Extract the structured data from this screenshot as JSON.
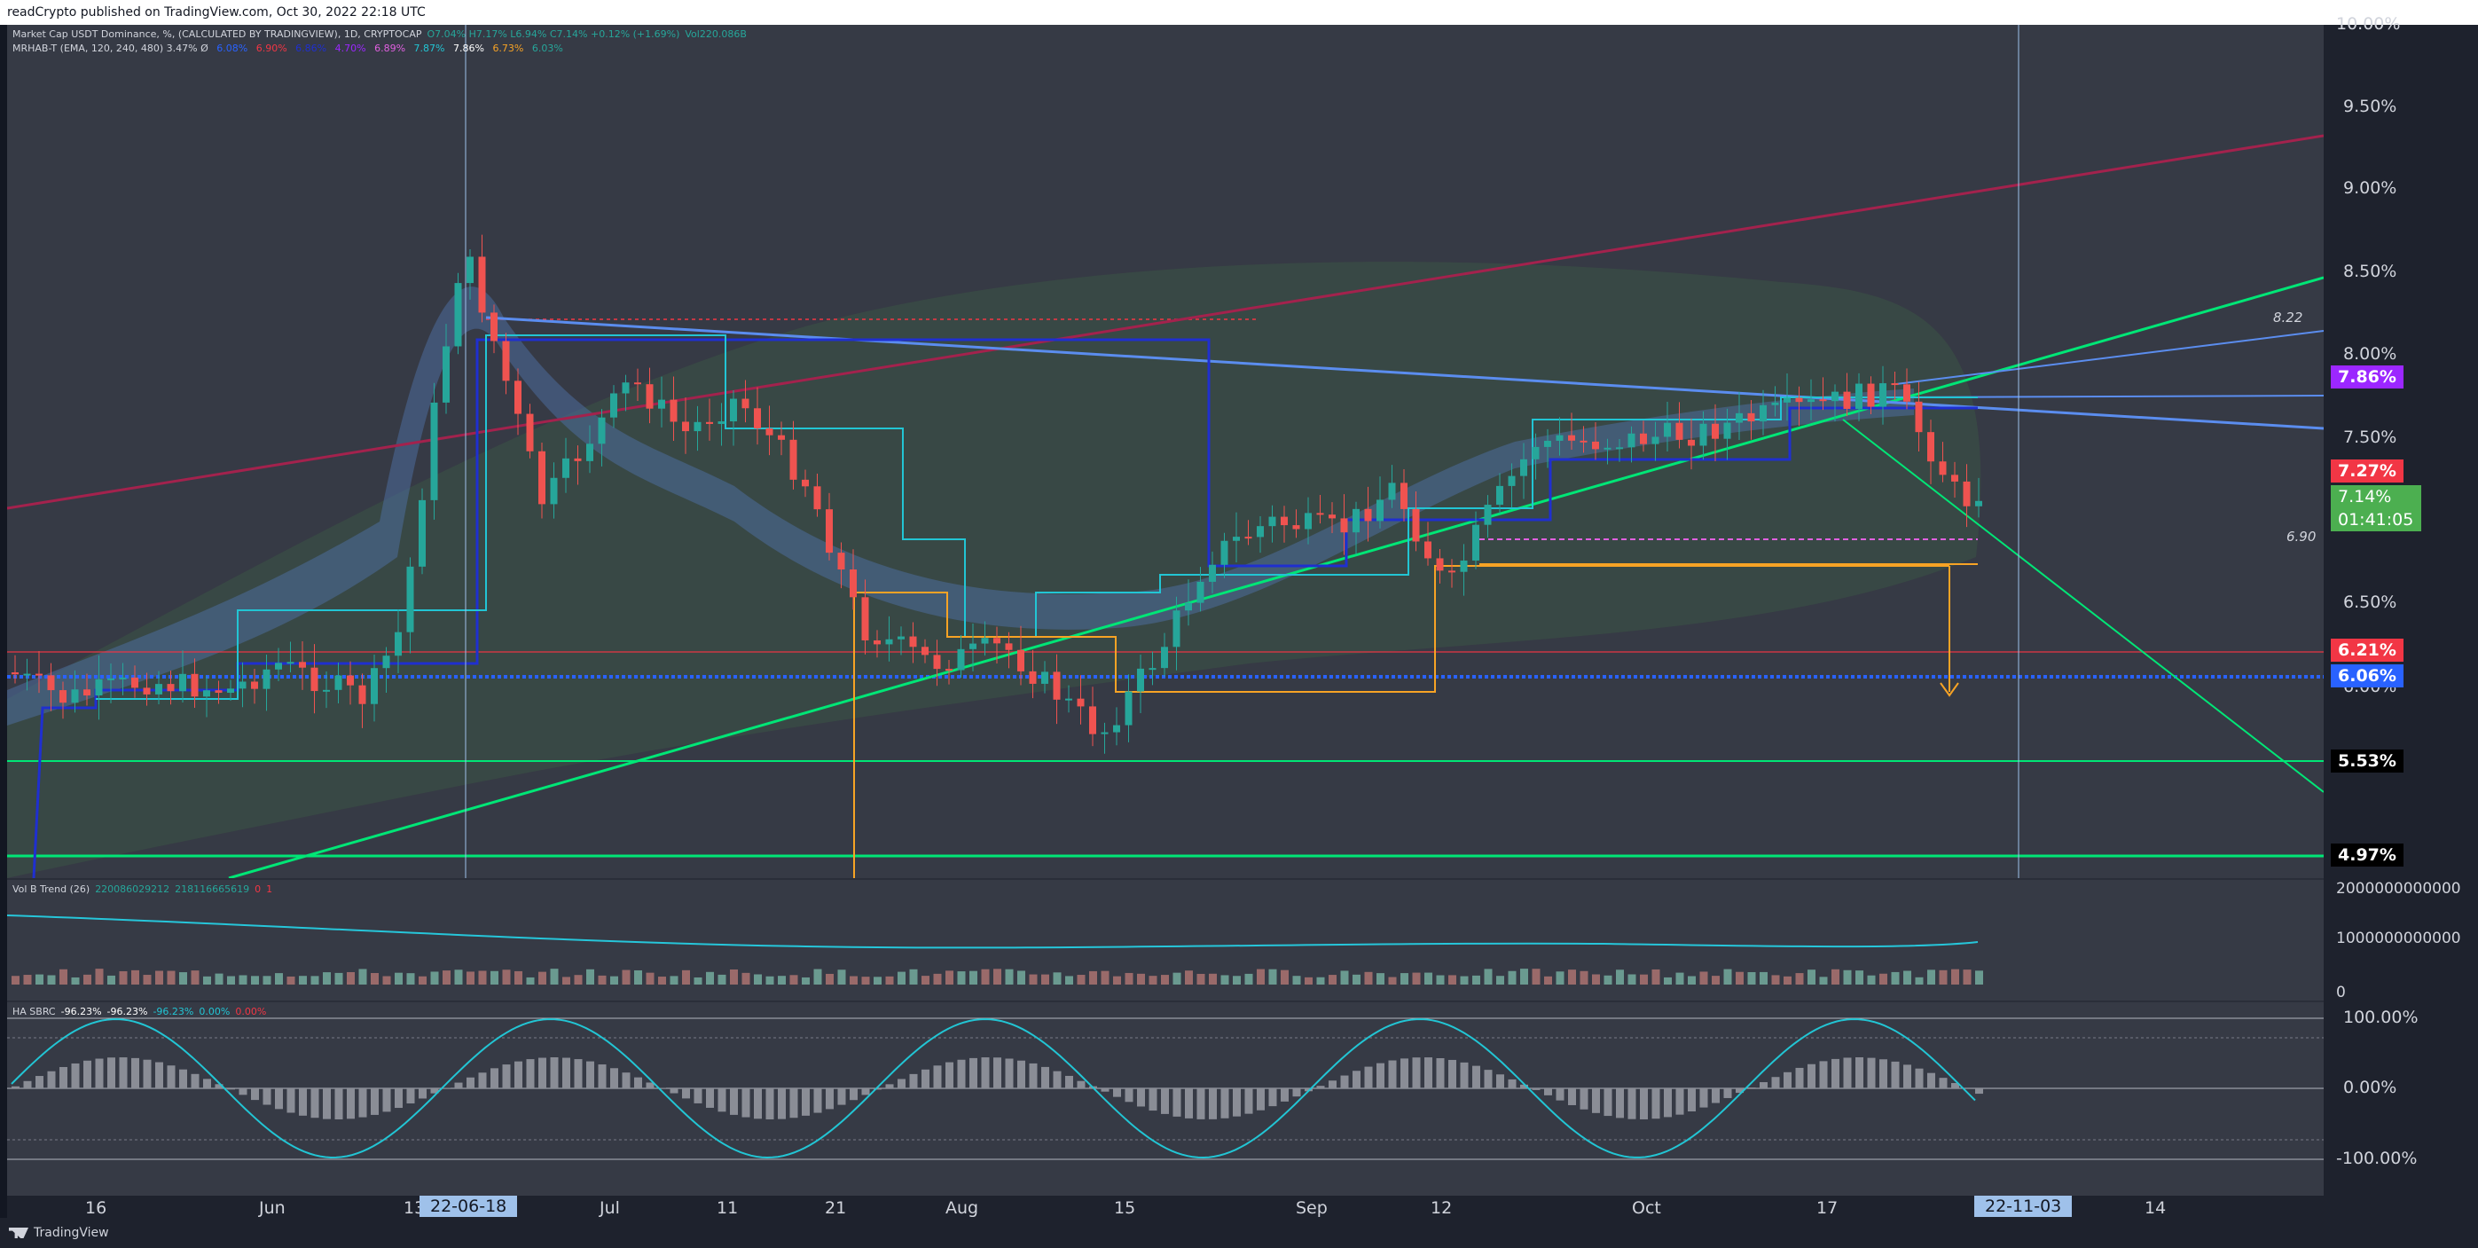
{
  "header": {
    "title": "readCrypto published on TradingView.com, Oct 30, 2022 22:18 UTC"
  },
  "legend_main": {
    "line1": "Market Cap USDT Dominance, %, (CALCULATED BY TRADINGVIEW), 1D, CRYPTOCAP",
    "ohlc": "O7.04%  H7.17%  L6.94%  C7.14%  +0.12% (+1.69%)",
    "vol": "Vol220.086B",
    "line2": "MRHAB-T (EMA, 120, 240, 480)  3.47%  Ø",
    "line2_vals": [
      "6.08%",
      "6.90%",
      "6.86%",
      "4.70%",
      "6.89%",
      "7.87%",
      "7.86%",
      "6.73%",
      "6.03%"
    ]
  },
  "legend_vol": {
    "label": "Vol B Trend (26)",
    "v1": "220086029212",
    "v2": "218116665619",
    "v3": "0",
    "v4": "1"
  },
  "legend_osc": {
    "label": "HA SBRC",
    "v1": "-96.23%",
    "v2": "-96.23%",
    "v3": "-96.23%",
    "v4": "0.00%",
    "v5": "0.00%"
  },
  "price_axis": {
    "ticks": [
      "10.00%",
      "9.50%",
      "9.00%",
      "8.50%",
      "8.00%",
      "7.50%",
      "6.50%",
      "6.00%"
    ],
    "badges": [
      {
        "label": "7.86%",
        "color": "#9c27ff",
        "text_color": "#ffffff"
      },
      {
        "label": "7.27%",
        "color": "#f23645",
        "text_color": "#ffffff"
      },
      {
        "label": "7.14%",
        "color": "#4caf50",
        "text_color": "#ffffff"
      },
      {
        "label": "01:41:05",
        "color": "#4caf50",
        "text_color": "#ffffff"
      },
      {
        "label": "6.21%",
        "color": "#f23645",
        "text_color": "#ffffff"
      },
      {
        "label": "6.06%",
        "color": "#2962ff",
        "text_color": "#ffffff"
      },
      {
        "label": "5.53%",
        "color": "#000000",
        "text_color": "#ffffff"
      },
      {
        "label": "4.97%",
        "color": "#000000",
        "text_color": "#ffffff"
      }
    ],
    "annotation_high": "8.22",
    "annotation_low": "6.90",
    "vol_ticks": [
      "2000000000000",
      "1000000000000",
      "0"
    ],
    "osc_ticks": [
      "100.00%",
      "0.00%",
      "-100.00%"
    ]
  },
  "time_axis": {
    "ticks": [
      "16",
      "Jun",
      "13",
      "Jul",
      "11",
      "21",
      "Aug",
      "15",
      "Sep",
      "12",
      "Oct",
      "17",
      "14"
    ],
    "badge_left": "22-06-18",
    "badge_right": "22-11-03"
  },
  "footer": {
    "brand": "TradingView"
  },
  "colors": {
    "bg": "#363a45",
    "up": "#26a69a",
    "down": "#ef5350",
    "green_line": "#00e676",
    "maroon_line": "#a3224d",
    "blue_line": "#5b8def",
    "orange": "#f7a325",
    "cyan": "#22c5d4",
    "navy": "#1f2fd0"
  }
}
